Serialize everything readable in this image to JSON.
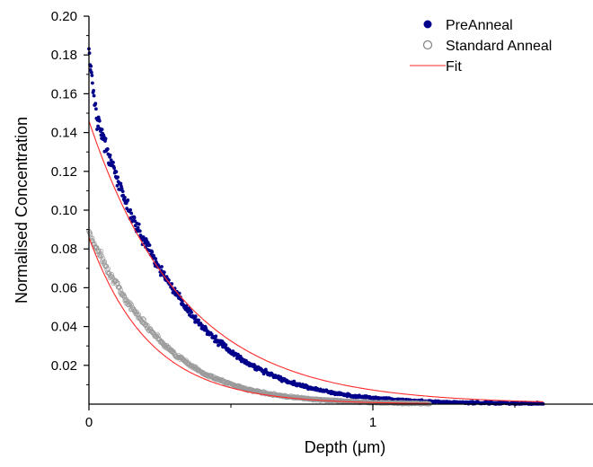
{
  "chart_data": {
    "type": "scatter",
    "title": "",
    "xlabel": "Depth (μm)",
    "ylabel": "Normalised Concentration",
    "xlim": [
      0,
      1.75
    ],
    "ylim": [
      0,
      0.2
    ],
    "x_ticks": [
      {
        "value": 0,
        "label": "0"
      },
      {
        "value": 1,
        "label": "1"
      }
    ],
    "y_ticks": [
      {
        "value": 0.02,
        "label": "0.02"
      },
      {
        "value": 0.04,
        "label": "0.04"
      },
      {
        "value": 0.06,
        "label": "0.06"
      },
      {
        "value": 0.08,
        "label": "0.08"
      },
      {
        "value": 0.1,
        "label": "0.10"
      },
      {
        "value": 0.12,
        "label": "0.12"
      },
      {
        "value": 0.14,
        "label": "0.14"
      },
      {
        "value": 0.16,
        "label": "0.16"
      },
      {
        "value": 0.18,
        "label": "0.18"
      },
      {
        "value": 0.2,
        "label": "0.20"
      }
    ],
    "grid": false,
    "legend_position": "top-right",
    "series": [
      {
        "name": "PreAnneal",
        "marker": "filled-circle",
        "color": "#00008b",
        "x": [
          0.0,
          0.01,
          0.02,
          0.03,
          0.05,
          0.07,
          0.1,
          0.13,
          0.16,
          0.2,
          0.25,
          0.3,
          0.35,
          0.4,
          0.45,
          0.5,
          0.55,
          0.6,
          0.65,
          0.7,
          0.75,
          0.8,
          0.85,
          0.9,
          0.95,
          1.0,
          1.1,
          1.2,
          1.3,
          1.4,
          1.5,
          1.6
        ],
        "y": [
          0.18,
          0.168,
          0.155,
          0.147,
          0.137,
          0.128,
          0.116,
          0.104,
          0.094,
          0.083,
          0.07,
          0.058,
          0.048,
          0.04,
          0.033,
          0.027,
          0.022,
          0.018,
          0.0145,
          0.0117,
          0.0094,
          0.0076,
          0.0061,
          0.0049,
          0.004,
          0.0032,
          0.0021,
          0.0014,
          0.0009,
          0.0006,
          0.0004,
          0.0003
        ]
      },
      {
        "name": "Standard Anneal",
        "marker": "open-circle",
        "color": "#808080",
        "x": [
          0.0,
          0.01,
          0.02,
          0.04,
          0.06,
          0.08,
          0.1,
          0.13,
          0.16,
          0.2,
          0.25,
          0.3,
          0.35,
          0.4,
          0.45,
          0.5,
          0.55,
          0.6,
          0.65,
          0.7,
          0.8,
          0.9,
          1.0,
          1.1,
          1.2
        ],
        "y": [
          0.09,
          0.085,
          0.082,
          0.077,
          0.071,
          0.066,
          0.061,
          0.054,
          0.048,
          0.041,
          0.033,
          0.026,
          0.021,
          0.016,
          0.013,
          0.0102,
          0.008,
          0.0063,
          0.005,
          0.0039,
          0.0024,
          0.0015,
          0.0009,
          0.0005,
          0.0003
        ]
      },
      {
        "name": "Fit",
        "marker": "line",
        "color": "#ff2a2a",
        "curves": [
          {
            "a": 0.146,
            "decay": 3.0,
            "x_start": 0,
            "x_end": 1.6
          },
          {
            "a": 0.086,
            "decay": 4.65,
            "x_start": 0,
            "x_end": 1.2
          }
        ]
      }
    ]
  }
}
